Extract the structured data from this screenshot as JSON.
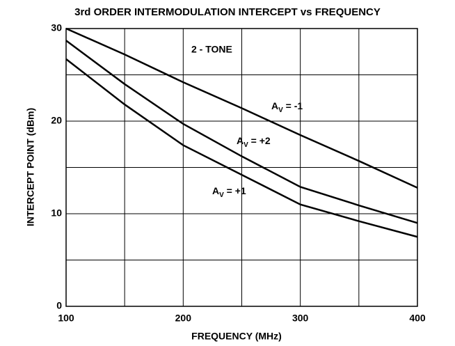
{
  "chart_data": {
    "type": "line",
    "title": "3rd ORDER INTERMODULATION INTERCEPT vs FREQUENCY",
    "xlabel": "FREQUENCY (MHz)",
    "ylabel": "INTERCEPT POINT (dBm)",
    "annotations": [
      "2 - TONE"
    ],
    "x": [
      100,
      150,
      200,
      250,
      300,
      350,
      400
    ],
    "series": [
      {
        "name": "AV = -1",
        "color": "#000000",
        "values": [
          30,
          27.2,
          24.2,
          21.4,
          18.5,
          15.7,
          12.8
        ]
      },
      {
        "name": "AV = +2",
        "color": "#000000",
        "values": [
          28.7,
          24.0,
          19.7,
          16.2,
          12.9,
          10.9,
          9.0
        ]
      },
      {
        "name": "AV = +1",
        "color": "#000000",
        "values": [
          26.7,
          21.8,
          17.4,
          14.2,
          11.0,
          9.2,
          7.5
        ]
      }
    ],
    "xlim": [
      100,
      400
    ],
    "xticks": [
      100,
      200,
      300,
      400
    ],
    "xminor": [
      150,
      250,
      350
    ],
    "ylim": [
      0,
      30
    ],
    "yticks": [
      0,
      10,
      20,
      30
    ],
    "yminor": [
      5,
      15,
      25
    ],
    "grid": true
  }
}
